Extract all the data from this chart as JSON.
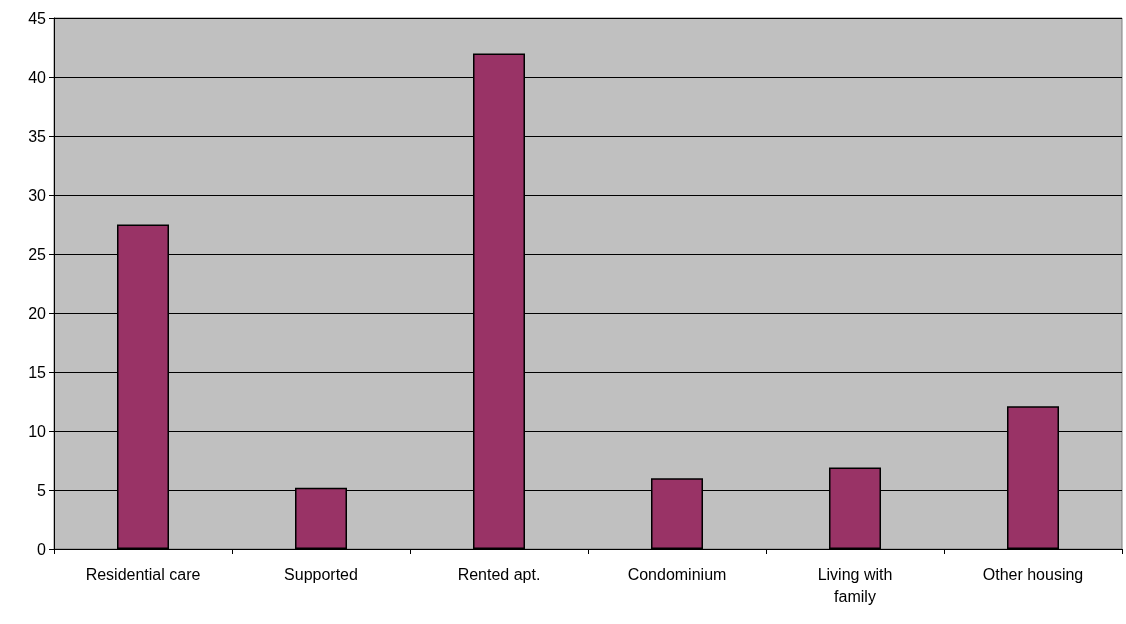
{
  "chart_data": {
    "type": "bar",
    "categories": [
      "Residential care",
      "Supported",
      "Rented apt.",
      "Condominium",
      "Living with family",
      "Other housing"
    ],
    "values": [
      27.5,
      5.2,
      42.0,
      6.0,
      6.9,
      12.1
    ],
    "color": "#993366",
    "ylim": [
      0,
      45
    ],
    "yticks": [
      0,
      5,
      10,
      15,
      20,
      25,
      30,
      35,
      40,
      45
    ],
    "grid": "y"
  }
}
